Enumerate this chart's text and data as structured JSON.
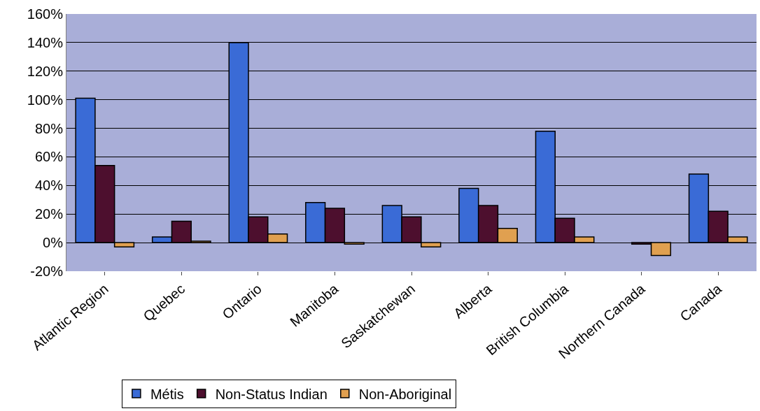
{
  "chart_data": {
    "type": "bar",
    "categories": [
      "Atlantic Region",
      "Quebec",
      "Ontario",
      "Manitoba",
      "Saskatchewan",
      "Alberta",
      "British Columbia",
      "Northern Canada",
      "Canada"
    ],
    "series": [
      {
        "name": "Métis",
        "color": "#3a6bd6",
        "values": [
          101,
          4,
          140,
          28,
          26,
          38,
          78,
          null,
          48
        ]
      },
      {
        "name": "Non-Status Indian",
        "color": "#4d0f2e",
        "values": [
          54,
          15,
          18,
          24,
          18,
          26,
          17,
          -1,
          22
        ]
      },
      {
        "name": "Non-Aboriginal",
        "color": "#e0a050",
        "values": [
          -3,
          1,
          6,
          -1,
          -3,
          10,
          4,
          -9,
          4
        ]
      }
    ],
    "ylim": [
      -20,
      160
    ],
    "yticks": [
      {
        "value": -20,
        "label": "-20%"
      },
      {
        "value": 0,
        "label": "0%"
      },
      {
        "value": 20,
        "label": "20%"
      },
      {
        "value": 40,
        "label": "40%"
      },
      {
        "value": 60,
        "label": "60%"
      },
      {
        "value": 80,
        "label": "80%"
      },
      {
        "value": 100,
        "label": "100%"
      },
      {
        "value": 120,
        "label": "120%"
      },
      {
        "value": 140,
        "label": "140%"
      },
      {
        "value": 160,
        "label": "160%"
      }
    ],
    "grid": "y",
    "legend": "bottom"
  }
}
